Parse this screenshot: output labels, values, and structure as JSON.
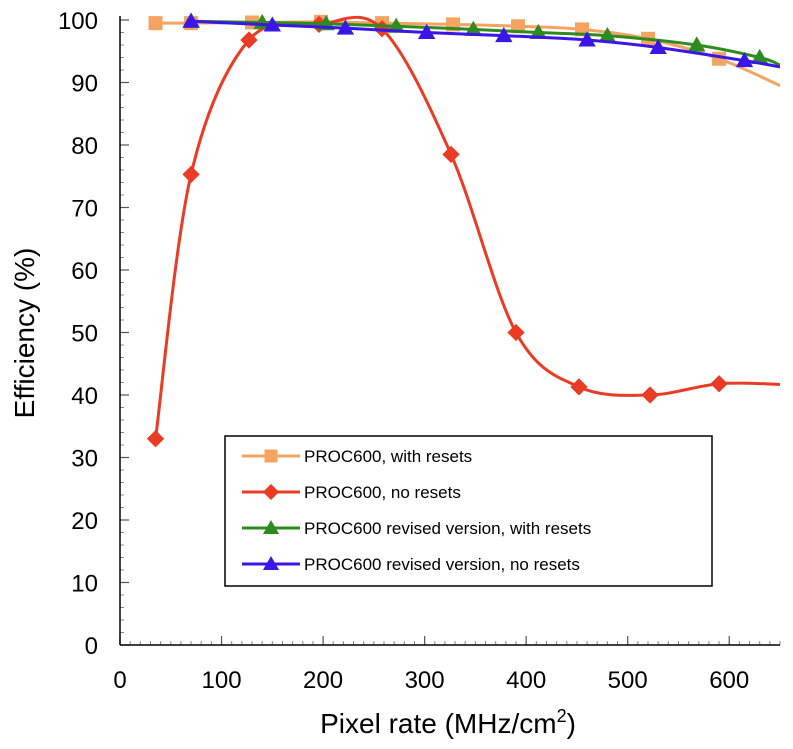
{
  "chart_data": {
    "type": "line",
    "title": "",
    "xlabel": "Pixel rate (MHz/cm",
    "xlabel_superscript": "2",
    "xlabel_suffix": ")",
    "ylabel": "Efficiency (%)",
    "xlim": [
      0,
      650
    ],
    "ylim": [
      0,
      100
    ],
    "x_ticks": [
      0,
      100,
      200,
      300,
      400,
      500,
      600
    ],
    "y_ticks": [
      0,
      10,
      20,
      30,
      40,
      50,
      60,
      70,
      80,
      90,
      100
    ],
    "x_minor_step": 10,
    "y_minor_step": 2,
    "grid": false,
    "legend_position": "bottom-center",
    "series": [
      {
        "name": "PROC600, with resets",
        "color": "#f4a460",
        "marker": "square",
        "x": [
          35,
          70,
          130,
          198,
          258,
          328,
          392,
          455,
          520,
          590,
          650
        ],
        "values": [
          99.5,
          99.5,
          99.6,
          99.7,
          99.5,
          99.3,
          99.0,
          98.5,
          97.0,
          93.8,
          89.5
        ]
      },
      {
        "name": "PROC600, no resets",
        "color": "#ea3b24",
        "marker": "diamond",
        "x": [
          35,
          70,
          127,
          196,
          258,
          326,
          390,
          452,
          522,
          590,
          650
        ],
        "values": [
          33.0,
          75.3,
          96.8,
          99.3,
          98.6,
          78.5,
          50.0,
          41.3,
          40.0,
          41.8,
          41.7
        ]
      },
      {
        "name": "PROC600 revised version, with resets",
        "color": "#2e8b1f",
        "marker": "triangle",
        "x": [
          70,
          140,
          203,
          272,
          348,
          412,
          480,
          568,
          630,
          650
        ],
        "values": [
          99.8,
          99.6,
          99.4,
          99.0,
          98.5,
          98.0,
          97.5,
          96.0,
          94.0,
          92.8
        ]
      },
      {
        "name": "PROC600 revised version, no resets",
        "color": "#3a16e8",
        "marker": "triangle",
        "x": [
          70,
          150,
          222,
          302,
          378,
          460,
          530,
          615,
          650
        ],
        "values": [
          99.8,
          99.2,
          98.7,
          98.0,
          97.5,
          96.8,
          95.6,
          93.5,
          92.5
        ]
      }
    ]
  }
}
